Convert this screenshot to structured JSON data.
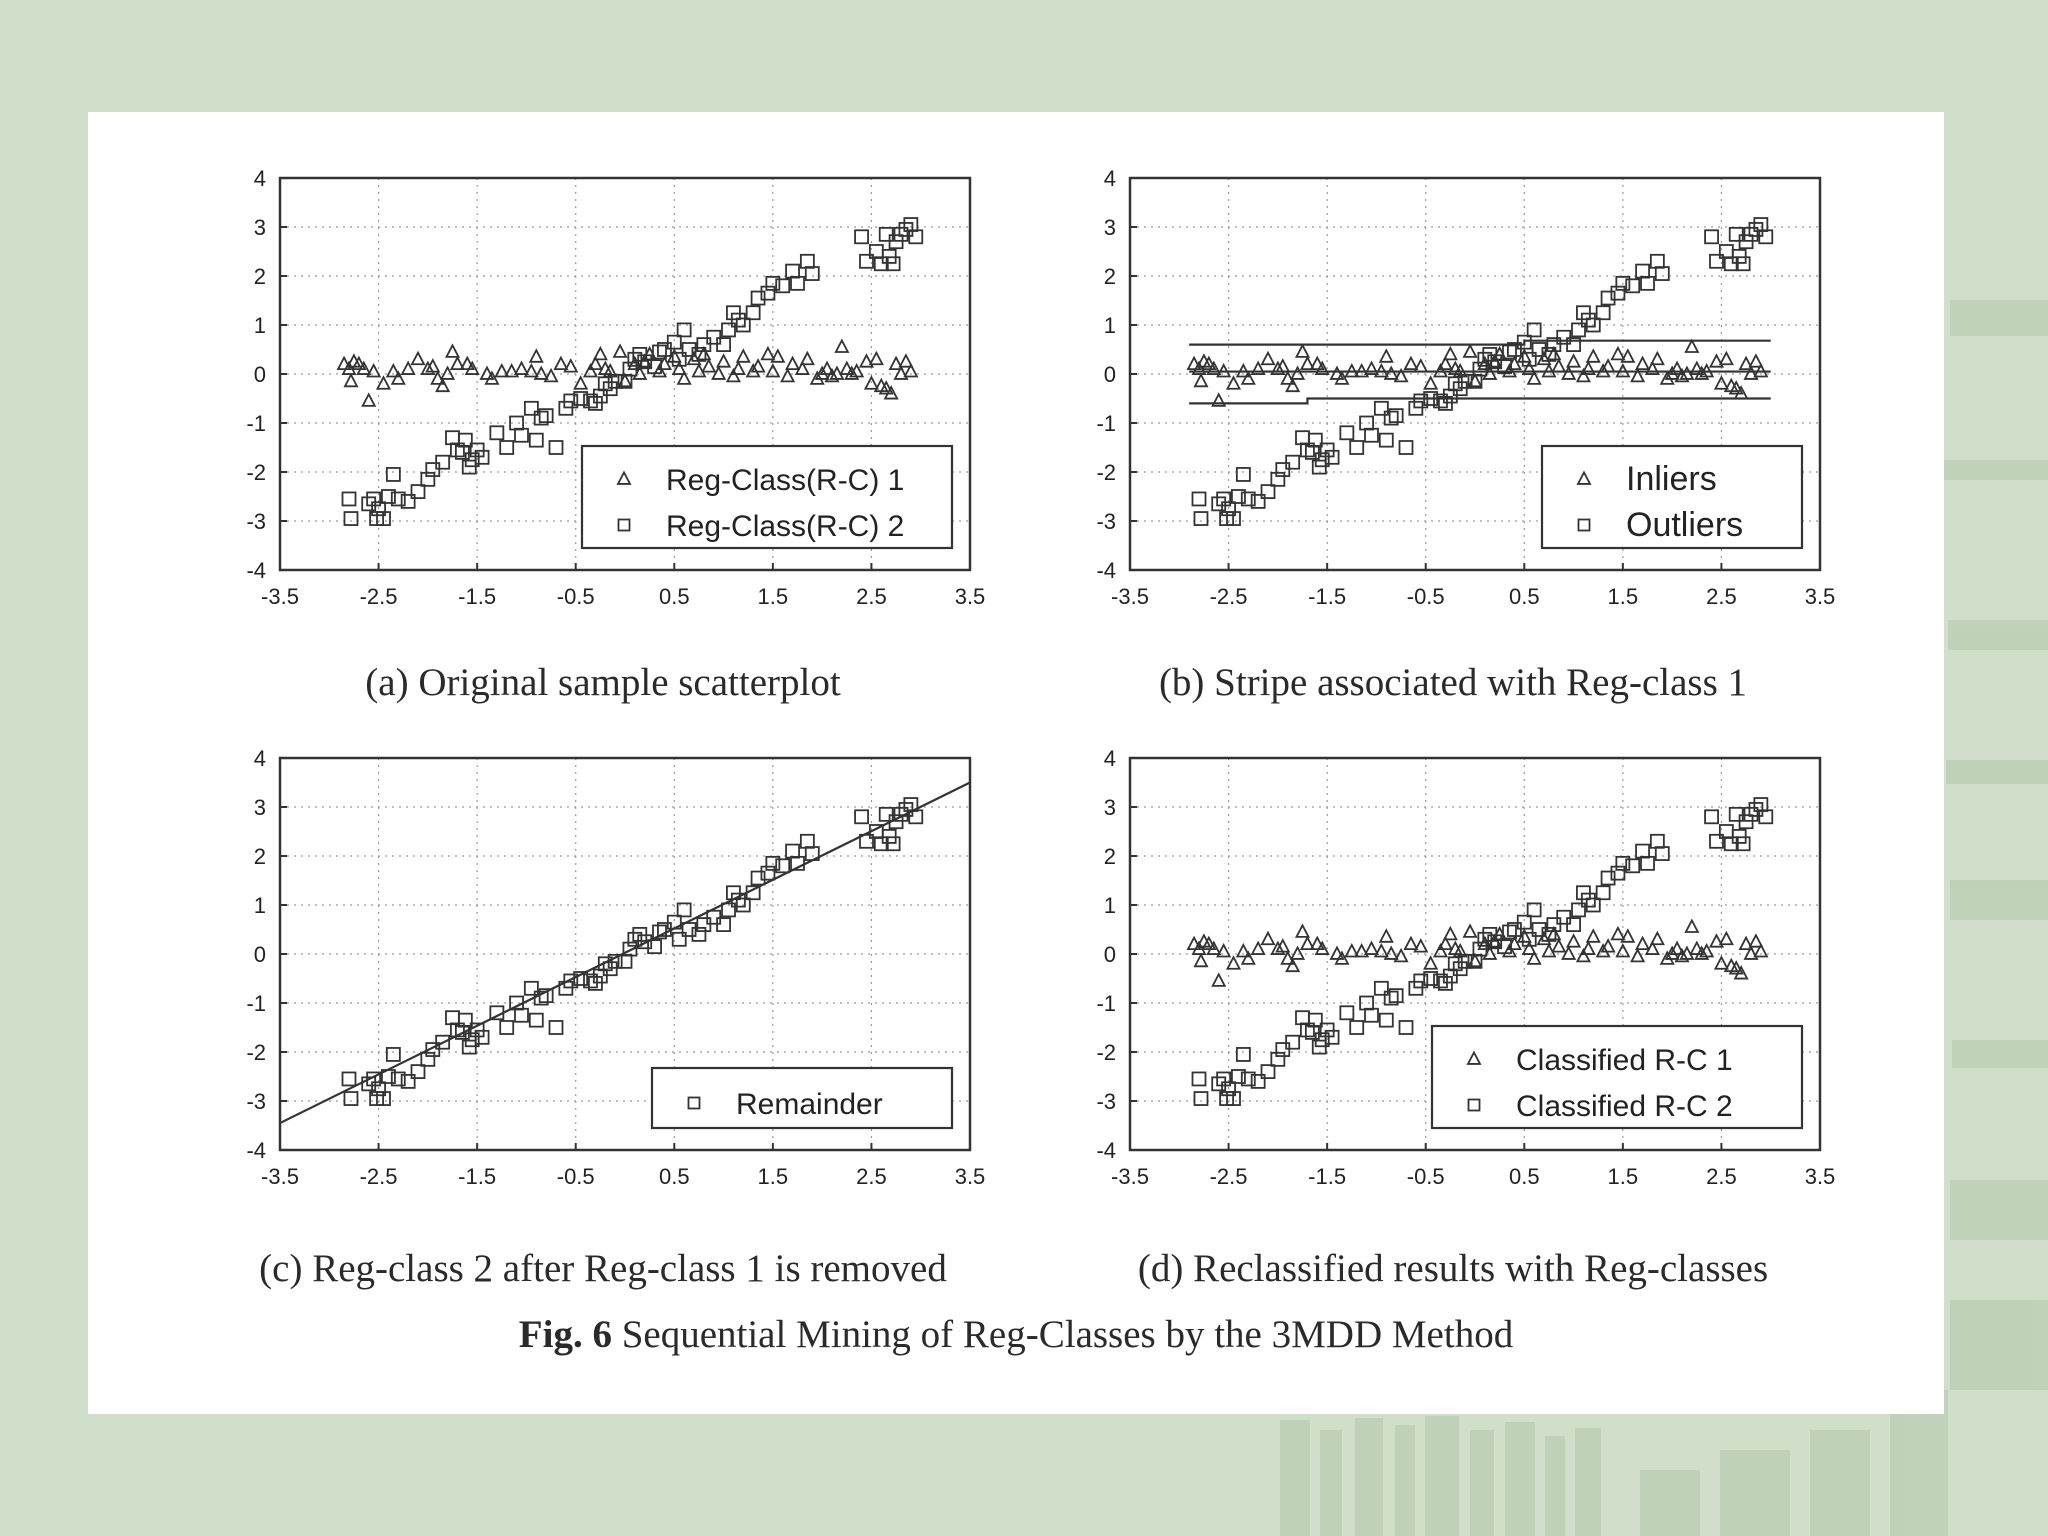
{
  "figure": {
    "label": "Fig. 6",
    "title": "Sequential Mining of Reg-Classes by the 3MDD Method"
  },
  "colors": {
    "background": "#cfdfc9",
    "paper": "#ffffff",
    "ink": "#333333"
  },
  "chart_data": [
    {
      "id": "a",
      "caption": "(a) Original sample scatterplot",
      "type": "scatter",
      "xlim": [
        -3.5,
        3.5
      ],
      "ylim": [
        -4,
        4
      ],
      "xticks": [
        "-3.5",
        "-2.5",
        "-1.5",
        "-0.5",
        "0.5",
        "1.5",
        "2.5",
        "3.5"
      ],
      "yticks": [
        "4",
        "3",
        "2",
        "1",
        "0",
        "-1",
        "-2",
        "-3",
        "-4"
      ],
      "grid": true,
      "legend_position": "bottom-right",
      "series": [
        {
          "name": "Reg-Class(R-C) 1",
          "marker": "triangle",
          "generator": "stripe"
        },
        {
          "name": "Reg-Class(R-C) 2",
          "marker": "square",
          "generator": "line"
        }
      ]
    },
    {
      "id": "b",
      "caption": "(b) Stripe associated with Reg-class 1",
      "type": "scatter",
      "xlim": [
        -3.5,
        3.5
      ],
      "ylim": [
        -4,
        4
      ],
      "xticks": [
        "-3.5",
        "-2.5",
        "-1.5",
        "-0.5",
        "0.5",
        "1.5",
        "2.5",
        "3.5"
      ],
      "yticks": [
        "4",
        "3",
        "2",
        "1",
        "0",
        "-1",
        "-2",
        "-3",
        "-4"
      ],
      "grid": true,
      "legend_position": "bottom-right",
      "series": [
        {
          "name": "Inliers",
          "marker": "triangle",
          "generator": "stripe"
        },
        {
          "name": "Outliers",
          "marker": "square",
          "generator": "line"
        }
      ],
      "lines": [
        {
          "segments": [
            [
              -2.9,
              0.6
            ],
            [
              0.5,
              0.6
            ],
            [
              0.5,
              0.68
            ],
            [
              3.0,
              0.68
            ]
          ]
        },
        {
          "segments": [
            [
              -2.9,
              0.05
            ],
            [
              3.0,
              0.05
            ]
          ]
        },
        {
          "segments": [
            [
              -2.9,
              -0.6
            ],
            [
              -1.7,
              -0.6
            ],
            [
              -1.7,
              -0.5
            ],
            [
              3.0,
              -0.5
            ]
          ]
        }
      ]
    },
    {
      "id": "c",
      "caption": "(c) Reg-class 2 after Reg-class 1 is removed",
      "type": "scatter",
      "xlim": [
        -3.5,
        3.5
      ],
      "ylim": [
        -4,
        4
      ],
      "xticks": [
        "-3.5",
        "-2.5",
        "-1.5",
        "-0.5",
        "0.5",
        "1.5",
        "2.5",
        "3.5"
      ],
      "yticks": [
        "4",
        "3",
        "2",
        "1",
        "0",
        "-1",
        "-2",
        "-3",
        "-4"
      ],
      "grid": true,
      "legend_position": "bottom-right",
      "series": [
        {
          "name": "Remainder",
          "marker": "square",
          "generator": "line"
        }
      ],
      "lines": [
        {
          "segments": [
            [
              -3.5,
              -3.45
            ],
            [
              3.5,
              3.5
            ]
          ]
        }
      ]
    },
    {
      "id": "d",
      "caption": "(d) Reclassified results with Reg-classes",
      "type": "scatter",
      "xlim": [
        -3.5,
        3.5
      ],
      "ylim": [
        -4,
        4
      ],
      "xticks": [
        "-3.5",
        "-2.5",
        "-1.5",
        "-0.5",
        "0.5",
        "1.5",
        "2.5",
        "3.5"
      ],
      "yticks": [
        "4",
        "3",
        "2",
        "1",
        "0",
        "-1",
        "-2",
        "-3",
        "-4"
      ],
      "grid": true,
      "legend_position": "bottom-right",
      "series": [
        {
          "name": "Classified R-C 1",
          "marker": "triangle",
          "generator": "stripe"
        },
        {
          "name": "Classified R-C 2",
          "marker": "square",
          "generator": "line"
        }
      ]
    }
  ],
  "point_sets": {
    "stripe": [
      [
        -2.85,
        0.2
      ],
      [
        -2.8,
        0.1
      ],
      [
        -2.78,
        -0.15
      ],
      [
        -2.75,
        0.25
      ],
      [
        -2.7,
        0.2
      ],
      [
        -2.65,
        0.1
      ],
      [
        -2.6,
        -0.55
      ],
      [
        -2.55,
        0.05
      ],
      [
        -2.45,
        -0.2
      ],
      [
        -2.35,
        0.05
      ],
      [
        -2.3,
        -0.1
      ],
      [
        -2.2,
        0.1
      ],
      [
        -2.1,
        0.3
      ],
      [
        -2.0,
        0.1
      ],
      [
        -1.95,
        0.15
      ],
      [
        -1.9,
        -0.1
      ],
      [
        -1.85,
        -0.25
      ],
      [
        -1.8,
        0.0
      ],
      [
        -1.75,
        0.45
      ],
      [
        -1.7,
        0.2
      ],
      [
        -1.6,
        0.2
      ],
      [
        -1.55,
        0.1
      ],
      [
        -1.4,
        0.0
      ],
      [
        -1.35,
        -0.1
      ],
      [
        -1.25,
        0.05
      ],
      [
        -1.15,
        0.05
      ],
      [
        -1.05,
        0.1
      ],
      [
        -0.95,
        0.05
      ],
      [
        -0.9,
        0.35
      ],
      [
        -0.85,
        0.0
      ],
      [
        -0.75,
        -0.05
      ],
      [
        -0.65,
        0.2
      ],
      [
        -0.55,
        0.15
      ],
      [
        -0.45,
        -0.2
      ],
      [
        -0.35,
        0.05
      ],
      [
        -0.3,
        0.2
      ],
      [
        -0.25,
        0.4
      ],
      [
        -0.2,
        0.1
      ],
      [
        -0.15,
        0.05
      ],
      [
        -0.05,
        0.45
      ],
      [
        0.0,
        -0.15
      ],
      [
        0.1,
        0.2
      ],
      [
        0.15,
        0.0
      ],
      [
        0.2,
        0.25
      ],
      [
        0.25,
        0.4
      ],
      [
        0.35,
        0.05
      ],
      [
        0.4,
        0.2
      ],
      [
        0.5,
        0.35
      ],
      [
        0.55,
        0.1
      ],
      [
        0.6,
        -0.1
      ],
      [
        0.7,
        0.3
      ],
      [
        0.75,
        0.05
      ],
      [
        0.8,
        0.4
      ],
      [
        0.85,
        0.15
      ],
      [
        0.95,
        0.0
      ],
      [
        1.0,
        0.25
      ],
      [
        1.1,
        -0.05
      ],
      [
        1.15,
        0.1
      ],
      [
        1.2,
        0.35
      ],
      [
        1.3,
        0.05
      ],
      [
        1.35,
        0.15
      ],
      [
        1.45,
        0.4
      ],
      [
        1.5,
        0.05
      ],
      [
        1.55,
        0.35
      ],
      [
        1.65,
        -0.05
      ],
      [
        1.7,
        0.2
      ],
      [
        1.8,
        0.1
      ],
      [
        1.85,
        0.3
      ],
      [
        1.95,
        -0.1
      ],
      [
        2.0,
        0.0
      ],
      [
        2.05,
        0.1
      ],
      [
        2.1,
        -0.05
      ],
      [
        2.15,
        0.0
      ],
      [
        2.2,
        0.55
      ],
      [
        2.25,
        0.1
      ],
      [
        2.3,
        0.0
      ],
      [
        2.35,
        0.05
      ],
      [
        2.45,
        0.25
      ],
      [
        2.5,
        -0.2
      ],
      [
        2.55,
        0.3
      ],
      [
        2.6,
        -0.25
      ],
      [
        2.65,
        -0.3
      ],
      [
        2.7,
        -0.4
      ],
      [
        2.75,
        0.2
      ],
      [
        2.8,
        0.0
      ],
      [
        2.85,
        0.25
      ],
      [
        2.9,
        0.05
      ]
    ],
    "line": [
      [
        -2.8,
        -2.55
      ],
      [
        -2.78,
        -2.95
      ],
      [
        -2.6,
        -2.65
      ],
      [
        -2.55,
        -2.55
      ],
      [
        -2.52,
        -2.95
      ],
      [
        -2.5,
        -2.75
      ],
      [
        -2.45,
        -2.95
      ],
      [
        -2.4,
        -2.5
      ],
      [
        -2.35,
        -2.05
      ],
      [
        -2.3,
        -2.55
      ],
      [
        -2.2,
        -2.6
      ],
      [
        -2.1,
        -2.4
      ],
      [
        -2.0,
        -2.15
      ],
      [
        -1.95,
        -1.95
      ],
      [
        -1.85,
        -1.8
      ],
      [
        -1.75,
        -1.3
      ],
      [
        -1.7,
        -1.55
      ],
      [
        -1.65,
        -1.6
      ],
      [
        -1.62,
        -1.35
      ],
      [
        -1.58,
        -1.9
      ],
      [
        -1.55,
        -1.75
      ],
      [
        -1.5,
        -1.55
      ],
      [
        -1.45,
        -1.7
      ],
      [
        -1.3,
        -1.2
      ],
      [
        -1.2,
        -1.5
      ],
      [
        -1.1,
        -1.0
      ],
      [
        -1.05,
        -1.25
      ],
      [
        -0.95,
        -0.7
      ],
      [
        -0.9,
        -1.35
      ],
      [
        -0.85,
        -0.9
      ],
      [
        -0.8,
        -0.85
      ],
      [
        -0.7,
        -1.5
      ],
      [
        -0.6,
        -0.7
      ],
      [
        -0.55,
        -0.55
      ],
      [
        -0.45,
        -0.5
      ],
      [
        -0.35,
        -0.55
      ],
      [
        -0.3,
        -0.6
      ],
      [
        -0.25,
        -0.45
      ],
      [
        -0.2,
        -0.2
      ],
      [
        -0.15,
        -0.3
      ],
      [
        -0.1,
        -0.15
      ],
      [
        0.0,
        -0.15
      ],
      [
        0.05,
        0.1
      ],
      [
        0.1,
        0.3
      ],
      [
        0.15,
        0.4
      ],
      [
        0.2,
        0.25
      ],
      [
        0.3,
        0.15
      ],
      [
        0.35,
        0.45
      ],
      [
        0.4,
        0.5
      ],
      [
        0.5,
        0.65
      ],
      [
        0.55,
        0.3
      ],
      [
        0.6,
        0.9
      ],
      [
        0.65,
        0.5
      ],
      [
        0.75,
        0.4
      ],
      [
        0.8,
        0.6
      ],
      [
        0.9,
        0.75
      ],
      [
        1.0,
        0.6
      ],
      [
        1.05,
        0.9
      ],
      [
        1.1,
        1.25
      ],
      [
        1.15,
        1.1
      ],
      [
        1.2,
        1.0
      ],
      [
        1.3,
        1.25
      ],
      [
        1.35,
        1.55
      ],
      [
        1.45,
        1.65
      ],
      [
        1.5,
        1.85
      ],
      [
        1.6,
        1.8
      ],
      [
        1.7,
        2.1
      ],
      [
        1.75,
        1.85
      ],
      [
        1.85,
        2.3
      ],
      [
        1.9,
        2.05
      ],
      [
        2.4,
        2.8
      ],
      [
        2.45,
        2.3
      ],
      [
        2.55,
        2.5
      ],
      [
        2.6,
        2.25
      ],
      [
        2.65,
        2.85
      ],
      [
        2.68,
        2.4
      ],
      [
        2.72,
        2.25
      ],
      [
        2.75,
        2.7
      ],
      [
        2.8,
        2.85
      ],
      [
        2.85,
        2.95
      ],
      [
        2.9,
        3.05
      ],
      [
        2.95,
        2.8
      ]
    ]
  }
}
